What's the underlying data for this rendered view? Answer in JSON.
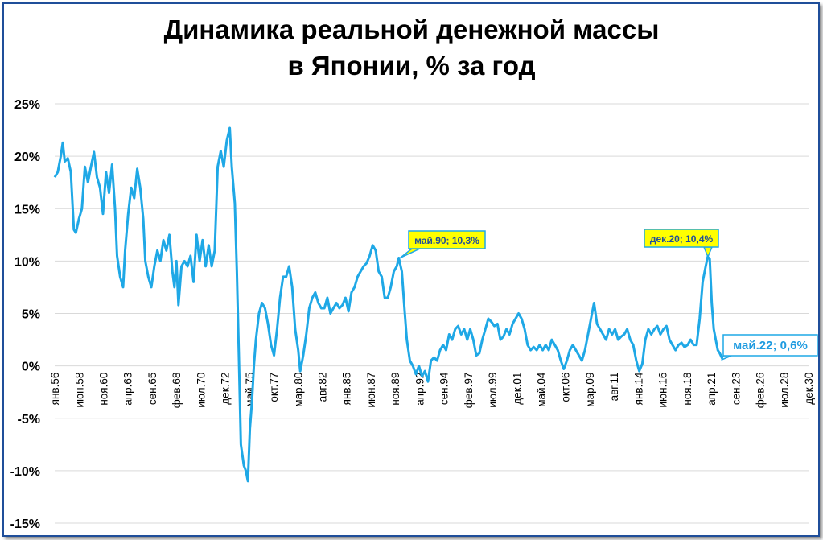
{
  "chart_data": {
    "type": "line",
    "title_line1": "Динамика реальной денежной массы",
    "title_line2": "в Японии, % за год",
    "xlabel": "",
    "ylabel": "",
    "ylim": [
      -15,
      25
    ],
    "y_ticks": [
      "-15%",
      "-10%",
      "-5%",
      "0%",
      "5%",
      "10%",
      "15%",
      "20%",
      "25%"
    ],
    "y_tick_values": [
      -15,
      -10,
      -5,
      0,
      5,
      10,
      15,
      20,
      25
    ],
    "x_range": [
      1956.0,
      2030.92
    ],
    "x_ticks": [
      {
        "label": "янв.56",
        "x": 1956.0
      },
      {
        "label": "июн.58",
        "x": 1958.42
      },
      {
        "label": "ноя.60",
        "x": 1960.83
      },
      {
        "label": "апр.63",
        "x": 1963.25
      },
      {
        "label": "сен.65",
        "x": 1965.67
      },
      {
        "label": "фев.68",
        "x": 1968.08
      },
      {
        "label": "июл.70",
        "x": 1970.5
      },
      {
        "label": "дек.72",
        "x": 1972.92
      },
      {
        "label": "май.75",
        "x": 1975.33
      },
      {
        "label": "окт.77",
        "x": 1977.75
      },
      {
        "label": "мар.80",
        "x": 1980.17
      },
      {
        "label": "авг.82",
        "x": 1982.58
      },
      {
        "label": "янв.85",
        "x": 1985.0
      },
      {
        "label": "июн.87",
        "x": 1987.42
      },
      {
        "label": "ноя.89",
        "x": 1989.83
      },
      {
        "label": "апр.92",
        "x": 1992.25
      },
      {
        "label": "сен.94",
        "x": 1994.67
      },
      {
        "label": "фев.97",
        "x": 1997.08
      },
      {
        "label": "июл.99",
        "x": 1999.5
      },
      {
        "label": "дек.01",
        "x": 2001.92
      },
      {
        "label": "май.04",
        "x": 2004.33
      },
      {
        "label": "окт.06",
        "x": 2006.75
      },
      {
        "label": "мар.09",
        "x": 2009.17
      },
      {
        "label": "авг.11",
        "x": 2011.58
      },
      {
        "label": "янв.14",
        "x": 2014.0
      },
      {
        "label": "июн.16",
        "x": 2016.42
      },
      {
        "label": "ноя.18",
        "x": 2018.83
      },
      {
        "label": "апр.21",
        "x": 2021.25
      },
      {
        "label": "сен.23",
        "x": 2023.67
      },
      {
        "label": "фев.26",
        "x": 2026.08
      },
      {
        "label": "июл.28",
        "x": 2028.5
      },
      {
        "label": "дек.30",
        "x": 2030.92
      }
    ],
    "grid": true,
    "line_color": "#1fa8e6",
    "series": [
      {
        "points": [
          [
            1956.0,
            18.0
          ],
          [
            1956.3,
            18.5
          ],
          [
            1956.6,
            20.0
          ],
          [
            1956.8,
            21.3
          ],
          [
            1957.0,
            19.5
          ],
          [
            1957.3,
            19.8
          ],
          [
            1957.6,
            18.5
          ],
          [
            1957.9,
            13.0
          ],
          [
            1958.1,
            12.7
          ],
          [
            1958.4,
            14.0
          ],
          [
            1958.7,
            15.0
          ],
          [
            1959.0,
            19.0
          ],
          [
            1959.3,
            17.5
          ],
          [
            1959.6,
            19.0
          ],
          [
            1959.9,
            20.4
          ],
          [
            1960.2,
            18.0
          ],
          [
            1960.5,
            17.0
          ],
          [
            1960.8,
            14.5
          ],
          [
            1961.1,
            18.5
          ],
          [
            1961.4,
            16.5
          ],
          [
            1961.7,
            19.2
          ],
          [
            1962.0,
            15.0
          ],
          [
            1962.2,
            10.5
          ],
          [
            1962.5,
            8.5
          ],
          [
            1962.8,
            7.5
          ],
          [
            1963.0,
            11.0
          ],
          [
            1963.3,
            14.5
          ],
          [
            1963.6,
            17.0
          ],
          [
            1963.9,
            16.0
          ],
          [
            1964.2,
            18.8
          ],
          [
            1964.5,
            17.0
          ],
          [
            1964.8,
            14.0
          ],
          [
            1965.0,
            10.0
          ],
          [
            1965.3,
            8.5
          ],
          [
            1965.6,
            7.5
          ],
          [
            1965.9,
            9.5
          ],
          [
            1966.2,
            11.0
          ],
          [
            1966.5,
            10.0
          ],
          [
            1966.8,
            12.0
          ],
          [
            1967.1,
            11.0
          ],
          [
            1967.4,
            12.5
          ],
          [
            1967.7,
            9.0
          ],
          [
            1967.9,
            7.5
          ],
          [
            1968.1,
            10.0
          ],
          [
            1968.3,
            5.8
          ],
          [
            1968.6,
            9.5
          ],
          [
            1968.9,
            10.0
          ],
          [
            1969.2,
            9.5
          ],
          [
            1969.5,
            10.5
          ],
          [
            1969.8,
            8.0
          ],
          [
            1970.1,
            12.5
          ],
          [
            1970.4,
            10.0
          ],
          [
            1970.7,
            12.0
          ],
          [
            1971.0,
            9.5
          ],
          [
            1971.3,
            11.5
          ],
          [
            1971.6,
            9.5
          ],
          [
            1971.9,
            11.0
          ],
          [
            1972.2,
            19.0
          ],
          [
            1972.5,
            20.5
          ],
          [
            1972.8,
            19.0
          ],
          [
            1973.1,
            21.5
          ],
          [
            1973.4,
            22.7
          ],
          [
            1973.6,
            19.0
          ],
          [
            1973.9,
            15.5
          ],
          [
            1974.1,
            9.0
          ],
          [
            1974.3,
            1.0
          ],
          [
            1974.5,
            -7.5
          ],
          [
            1974.8,
            -9.5
          ],
          [
            1975.0,
            -10.0
          ],
          [
            1975.2,
            -11.0
          ],
          [
            1975.4,
            -6.0
          ],
          [
            1975.6,
            -3.5
          ],
          [
            1975.8,
            0.0
          ],
          [
            1976.0,
            2.5
          ],
          [
            1976.3,
            5.0
          ],
          [
            1976.6,
            6.0
          ],
          [
            1976.9,
            5.5
          ],
          [
            1977.2,
            4.0
          ],
          [
            1977.5,
            2.0
          ],
          [
            1977.8,
            1.0
          ],
          [
            1978.1,
            3.5
          ],
          [
            1978.4,
            6.5
          ],
          [
            1978.7,
            8.5
          ],
          [
            1979.0,
            8.5
          ],
          [
            1979.3,
            9.5
          ],
          [
            1979.6,
            7.5
          ],
          [
            1979.9,
            3.5
          ],
          [
            1980.2,
            1.5
          ],
          [
            1980.4,
            -0.5
          ],
          [
            1980.7,
            1.0
          ],
          [
            1981.0,
            3.0
          ],
          [
            1981.3,
            5.5
          ],
          [
            1981.6,
            6.5
          ],
          [
            1981.9,
            7.0
          ],
          [
            1982.2,
            6.0
          ],
          [
            1982.5,
            5.5
          ],
          [
            1982.8,
            5.5
          ],
          [
            1983.1,
            6.5
          ],
          [
            1983.4,
            5.0
          ],
          [
            1983.7,
            5.5
          ],
          [
            1984.0,
            6.0
          ],
          [
            1984.3,
            5.5
          ],
          [
            1984.6,
            5.8
          ],
          [
            1984.9,
            6.5
          ],
          [
            1985.2,
            5.2
          ],
          [
            1985.5,
            7.0
          ],
          [
            1985.8,
            7.5
          ],
          [
            1986.1,
            8.5
          ],
          [
            1986.4,
            9.0
          ],
          [
            1986.7,
            9.5
          ],
          [
            1987.0,
            9.8
          ],
          [
            1987.3,
            10.5
          ],
          [
            1987.6,
            11.5
          ],
          [
            1987.9,
            11.0
          ],
          [
            1988.2,
            9.0
          ],
          [
            1988.5,
            8.5
          ],
          [
            1988.8,
            6.5
          ],
          [
            1989.1,
            6.5
          ],
          [
            1989.4,
            7.5
          ],
          [
            1989.7,
            9.0
          ],
          [
            1990.0,
            9.5
          ],
          [
            1990.2,
            10.3
          ],
          [
            1990.5,
            9.0
          ],
          [
            1990.8,
            5.0
          ],
          [
            1991.0,
            2.5
          ],
          [
            1991.3,
            0.5
          ],
          [
            1991.6,
            0.0
          ],
          [
            1991.9,
            -0.8
          ],
          [
            1992.2,
            0.0
          ],
          [
            1992.5,
            -1.0
          ],
          [
            1992.8,
            -0.5
          ],
          [
            1993.1,
            -1.5
          ],
          [
            1993.4,
            0.5
          ],
          [
            1993.7,
            0.8
          ],
          [
            1994.0,
            0.5
          ],
          [
            1994.3,
            1.5
          ],
          [
            1994.6,
            2.0
          ],
          [
            1994.9,
            1.5
          ],
          [
            1995.2,
            3.0
          ],
          [
            1995.5,
            2.5
          ],
          [
            1995.8,
            3.5
          ],
          [
            1996.1,
            3.8
          ],
          [
            1996.4,
            3.0
          ],
          [
            1996.7,
            3.5
          ],
          [
            1997.0,
            2.5
          ],
          [
            1997.3,
            3.5
          ],
          [
            1997.6,
            2.5
          ],
          [
            1997.9,
            1.0
          ],
          [
            1998.2,
            1.2
          ],
          [
            1998.5,
            2.5
          ],
          [
            1998.8,
            3.5
          ],
          [
            1999.1,
            4.5
          ],
          [
            1999.4,
            4.2
          ],
          [
            1999.7,
            3.8
          ],
          [
            2000.0,
            4.0
          ],
          [
            2000.3,
            2.5
          ],
          [
            2000.6,
            2.8
          ],
          [
            2000.9,
            3.5
          ],
          [
            2001.2,
            3.0
          ],
          [
            2001.5,
            4.0
          ],
          [
            2001.8,
            4.5
          ],
          [
            2002.1,
            5.0
          ],
          [
            2002.4,
            4.5
          ],
          [
            2002.7,
            3.5
          ],
          [
            2003.0,
            2.0
          ],
          [
            2003.3,
            1.5
          ],
          [
            2003.6,
            1.8
          ],
          [
            2003.9,
            1.5
          ],
          [
            2004.2,
            2.0
          ],
          [
            2004.5,
            1.5
          ],
          [
            2004.8,
            2.0
          ],
          [
            2005.1,
            1.5
          ],
          [
            2005.4,
            2.5
          ],
          [
            2005.7,
            2.0
          ],
          [
            2006.0,
            1.5
          ],
          [
            2006.3,
            0.5
          ],
          [
            2006.6,
            -0.3
          ],
          [
            2006.9,
            0.5
          ],
          [
            2007.2,
            1.5
          ],
          [
            2007.5,
            2.0
          ],
          [
            2007.8,
            1.5
          ],
          [
            2008.1,
            1.0
          ],
          [
            2008.4,
            0.5
          ],
          [
            2008.7,
            1.5
          ],
          [
            2009.0,
            3.0
          ],
          [
            2009.3,
            4.5
          ],
          [
            2009.6,
            6.0
          ],
          [
            2009.9,
            4.0
          ],
          [
            2010.2,
            3.5
          ],
          [
            2010.5,
            3.0
          ],
          [
            2010.8,
            2.5
          ],
          [
            2011.1,
            3.5
          ],
          [
            2011.4,
            3.0
          ],
          [
            2011.7,
            3.5
          ],
          [
            2012.0,
            2.5
          ],
          [
            2012.3,
            2.8
          ],
          [
            2012.6,
            3.0
          ],
          [
            2012.9,
            3.5
          ],
          [
            2013.2,
            2.5
          ],
          [
            2013.5,
            2.0
          ],
          [
            2013.8,
            0.5
          ],
          [
            2014.1,
            -0.5
          ],
          [
            2014.4,
            0.2
          ],
          [
            2014.7,
            2.5
          ],
          [
            2015.0,
            3.5
          ],
          [
            2015.3,
            3.0
          ],
          [
            2015.6,
            3.5
          ],
          [
            2015.9,
            3.8
          ],
          [
            2016.2,
            3.0
          ],
          [
            2016.5,
            3.5
          ],
          [
            2016.8,
            3.8
          ],
          [
            2017.1,
            2.5
          ],
          [
            2017.4,
            2.0
          ],
          [
            2017.7,
            1.5
          ],
          [
            2018.0,
            2.0
          ],
          [
            2018.3,
            2.2
          ],
          [
            2018.6,
            1.8
          ],
          [
            2018.9,
            2.0
          ],
          [
            2019.2,
            2.5
          ],
          [
            2019.5,
            2.0
          ],
          [
            2019.8,
            2.0
          ],
          [
            2020.1,
            4.5
          ],
          [
            2020.4,
            8.0
          ],
          [
            2020.7,
            9.5
          ],
          [
            2020.9,
            10.4
          ],
          [
            2021.1,
            10.2
          ],
          [
            2021.3,
            6.0
          ],
          [
            2021.5,
            3.5
          ],
          [
            2021.7,
            2.5
          ],
          [
            2021.9,
            1.5
          ],
          [
            2022.1,
            1.2
          ],
          [
            2022.4,
            0.6
          ]
        ]
      }
    ],
    "annotations": [
      {
        "text": "май.90; 10,3%",
        "x": 1990.33,
        "y": 10.3
      },
      {
        "text": "дек.20; 10,4%",
        "x": 2020.92,
        "y": 10.4
      },
      {
        "text": "май.22; 0,6%",
        "x": 2022.33,
        "y": 0.6
      }
    ]
  }
}
